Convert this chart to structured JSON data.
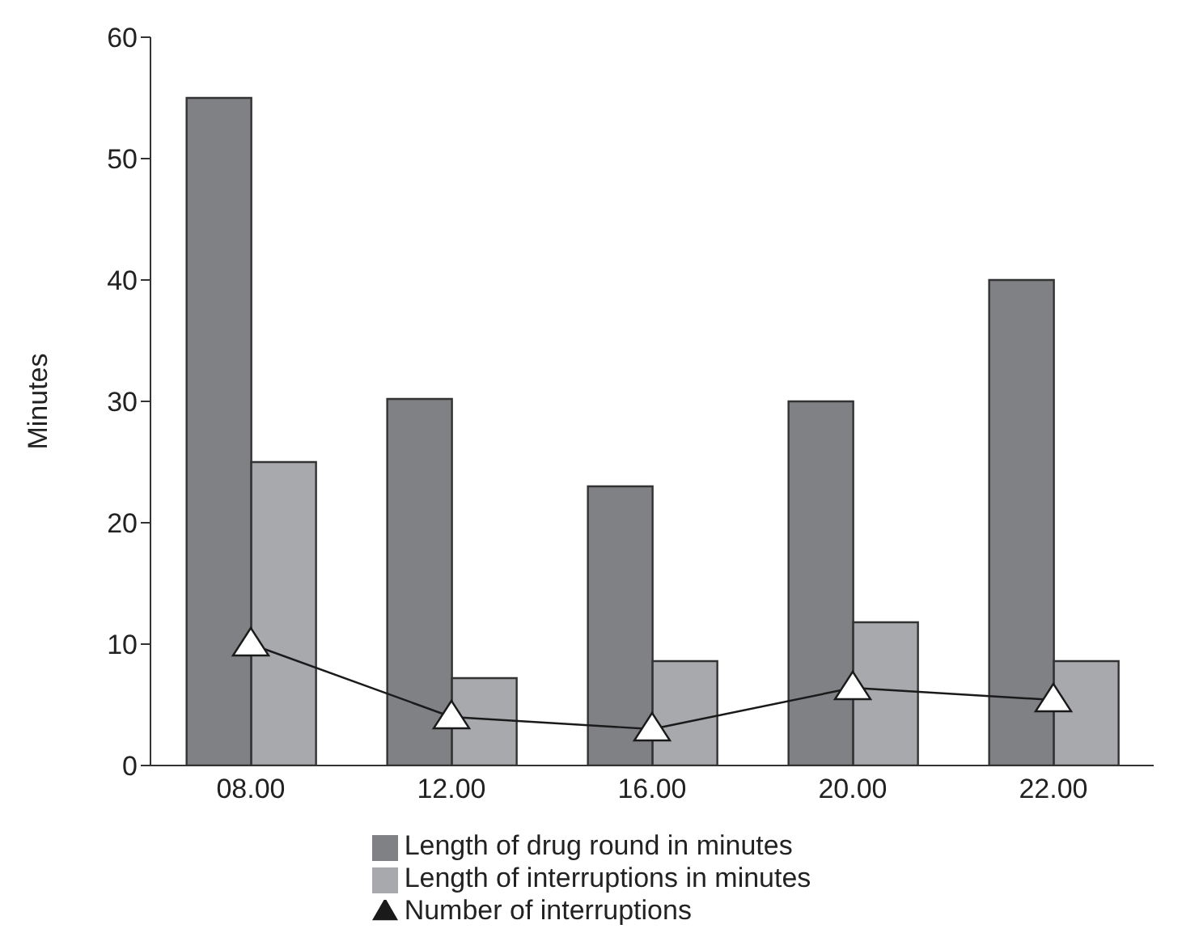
{
  "chart_data": {
    "type": "bar",
    "ylabel": "Minutes",
    "categories": [
      "08.00",
      "12.00",
      "16.00",
      "20.00",
      "22.00"
    ],
    "series": [
      {
        "name": "Length of drug round in minutes",
        "color": "#808185",
        "values": [
          55,
          30.2,
          23,
          30,
          40
        ]
      },
      {
        "name": "Length of interruptions in minutes",
        "color": "#a8a9ad",
        "values": [
          25,
          7.2,
          8.6,
          11.8,
          8.6
        ]
      },
      {
        "name": "Number of interruptions",
        "type": "line",
        "color": "#1a1a1a",
        "marker": "triangle",
        "values": [
          10,
          4,
          3,
          6.4,
          5.4
        ]
      }
    ],
    "ylim": [
      0,
      60
    ],
    "yticks": [
      0,
      10,
      20,
      30,
      40,
      50,
      60
    ],
    "grid": false,
    "legend": "bottom"
  }
}
